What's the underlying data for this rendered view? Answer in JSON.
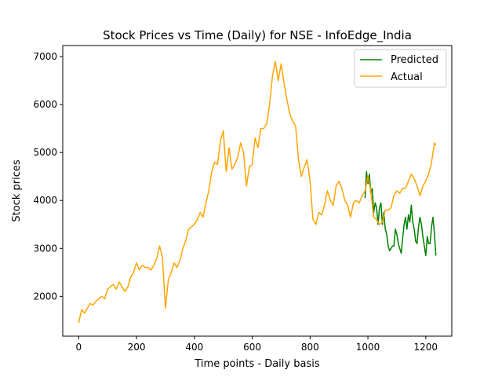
{
  "chart_data": {
    "type": "line",
    "title": "Stock Prices vs Time (Daily) for NSE - InfoEdge_India",
    "xlabel": "Time points - Daily basis",
    "ylabel": "Stock prices",
    "xlim": [
      -55,
      1290
    ],
    "ylim": [
      1170,
      7230
    ],
    "xticks": [
      0,
      200,
      400,
      600,
      800,
      1000,
      1200
    ],
    "yticks": [
      2000,
      3000,
      4000,
      5000,
      6000,
      7000
    ],
    "grid": false,
    "legend_position": "top-right",
    "series": [
      {
        "name": "Predicted",
        "color": "#008000",
        "x": [
          990,
          995,
          1000,
          1005,
          1010,
          1015,
          1020,
          1025,
          1030,
          1035,
          1040,
          1045,
          1050,
          1055,
          1060,
          1065,
          1070,
          1075,
          1080,
          1085,
          1090,
          1095,
          1100,
          1105,
          1110,
          1115,
          1120,
          1125,
          1130,
          1135,
          1140,
          1145,
          1150,
          1155,
          1160,
          1165,
          1170,
          1175,
          1180,
          1185,
          1190,
          1195,
          1200,
          1205,
          1210,
          1215,
          1220,
          1225,
          1230,
          1235
        ],
        "y": [
          4050,
          4600,
          4350,
          4550,
          4150,
          4250,
          3750,
          3950,
          3850,
          3500,
          3850,
          3950,
          3500,
          3750,
          3400,
          3300,
          3050,
          2950,
          3000,
          3050,
          3050,
          3400,
          3300,
          3100,
          3000,
          2900,
          3200,
          3500,
          3650,
          3400,
          3700,
          3550,
          3900,
          3550,
          3400,
          3150,
          3100,
          3450,
          3650,
          3500,
          3250,
          3050,
          2850,
          3250,
          3100,
          3100,
          3450,
          3650,
          3300,
          2850
        ]
      },
      {
        "name": "Actual",
        "color": "#ffa500",
        "x": [
          0,
          10,
          20,
          30,
          40,
          50,
          60,
          70,
          80,
          90,
          100,
          110,
          120,
          130,
          140,
          150,
          160,
          170,
          180,
          190,
          200,
          210,
          220,
          230,
          240,
          250,
          260,
          270,
          280,
          290,
          300,
          310,
          320,
          330,
          340,
          350,
          360,
          370,
          380,
          390,
          400,
          410,
          420,
          430,
          440,
          450,
          460,
          470,
          480,
          490,
          500,
          510,
          520,
          530,
          540,
          550,
          560,
          570,
          580,
          590,
          600,
          610,
          620,
          630,
          640,
          650,
          660,
          670,
          680,
          690,
          700,
          710,
          720,
          730,
          740,
          750,
          760,
          770,
          780,
          790,
          800,
          810,
          820,
          830,
          840,
          850,
          860,
          870,
          880,
          890,
          900,
          910,
          920,
          930,
          940,
          950,
          960,
          970,
          980,
          990,
          1000,
          1010,
          1020,
          1030,
          1040,
          1050,
          1060,
          1070,
          1080,
          1090,
          1100,
          1110,
          1120,
          1130,
          1140,
          1150,
          1160,
          1170,
          1180,
          1190,
          1200,
          1210,
          1220,
          1230,
          1235
        ],
        "y": [
          1450,
          1720,
          1650,
          1750,
          1850,
          1820,
          1900,
          1950,
          2000,
          1950,
          2150,
          2200,
          2250,
          2150,
          2300,
          2200,
          2100,
          2200,
          2400,
          2500,
          2700,
          2550,
          2650,
          2600,
          2600,
          2550,
          2650,
          2800,
          3050,
          2800,
          1750,
          2350,
          2500,
          2700,
          2600,
          2750,
          3000,
          3150,
          3400,
          3450,
          3500,
          3600,
          3750,
          3650,
          3950,
          4200,
          4600,
          4800,
          4750,
          5250,
          5450,
          4600,
          5100,
          4650,
          4750,
          4900,
          5200,
          5000,
          4300,
          4700,
          4750,
          5300,
          5100,
          5500,
          5500,
          5600,
          6000,
          6600,
          6900,
          6500,
          6850,
          6450,
          6100,
          5800,
          5650,
          5550,
          4850,
          4500,
          4700,
          4850,
          4400,
          3600,
          3500,
          3750,
          3700,
          3900,
          4200,
          4000,
          3900,
          4300,
          4400,
          4250,
          4000,
          3900,
          3650,
          3950,
          4000,
          3950,
          4100,
          4200,
          4500,
          4200,
          3650,
          3600,
          3500,
          3550,
          3800,
          3800,
          3850,
          4100,
          4200,
          4150,
          4250,
          4250,
          4400,
          4550,
          4450,
          4300,
          4100,
          4300,
          4400,
          4550,
          4800,
          5200,
          5150
        ]
      }
    ]
  }
}
